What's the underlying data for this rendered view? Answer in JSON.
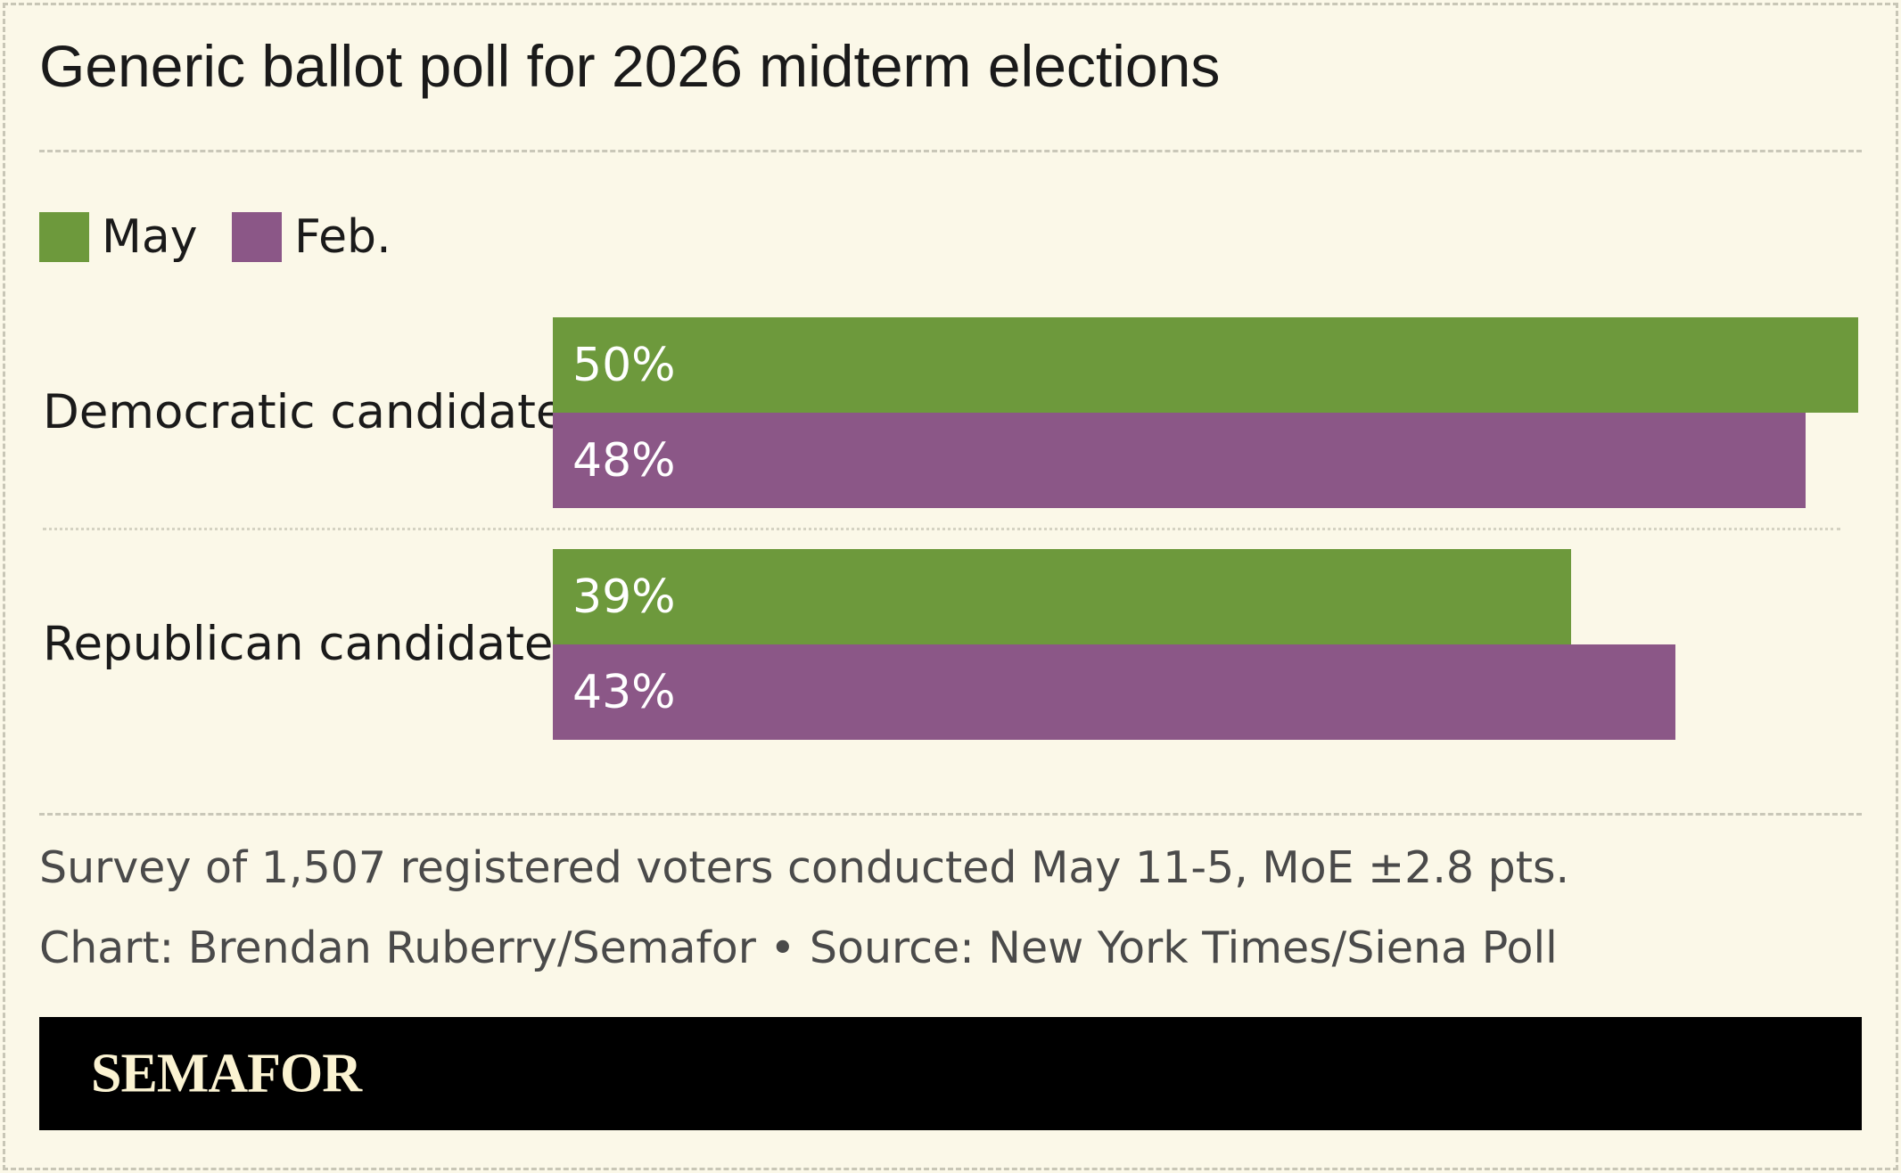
{
  "chart_data": {
    "type": "bar",
    "orientation": "horizontal",
    "title": "Generic ballot poll for 2026 midterm elections",
    "categories": [
      "Democratic candidate",
      "Republican candidate"
    ],
    "series": [
      {
        "name": "May",
        "values": [
          50,
          39
        ],
        "labels": [
          "50%",
          "39%"
        ],
        "color": "#6d993c"
      },
      {
        "name": "Feb.",
        "values": [
          48,
          43
        ],
        "labels": [
          "48%",
          "43%"
        ],
        "color": "#8b5787"
      }
    ],
    "xlim": [
      0,
      50
    ],
    "grid": false,
    "legend_position": "top-left",
    "note": "Survey of 1,507 registered voters conducted May 11-5, MoE ±2.8 pts.",
    "credit": "Chart: Brendan Ruberry/Semafor • Source: New York Times/Siena Poll"
  },
  "brand": {
    "logo_text": "SEMAFOR",
    "background": "#fbf8e8",
    "footer_color": "#000000",
    "logo_color": "#fbf3d2"
  }
}
